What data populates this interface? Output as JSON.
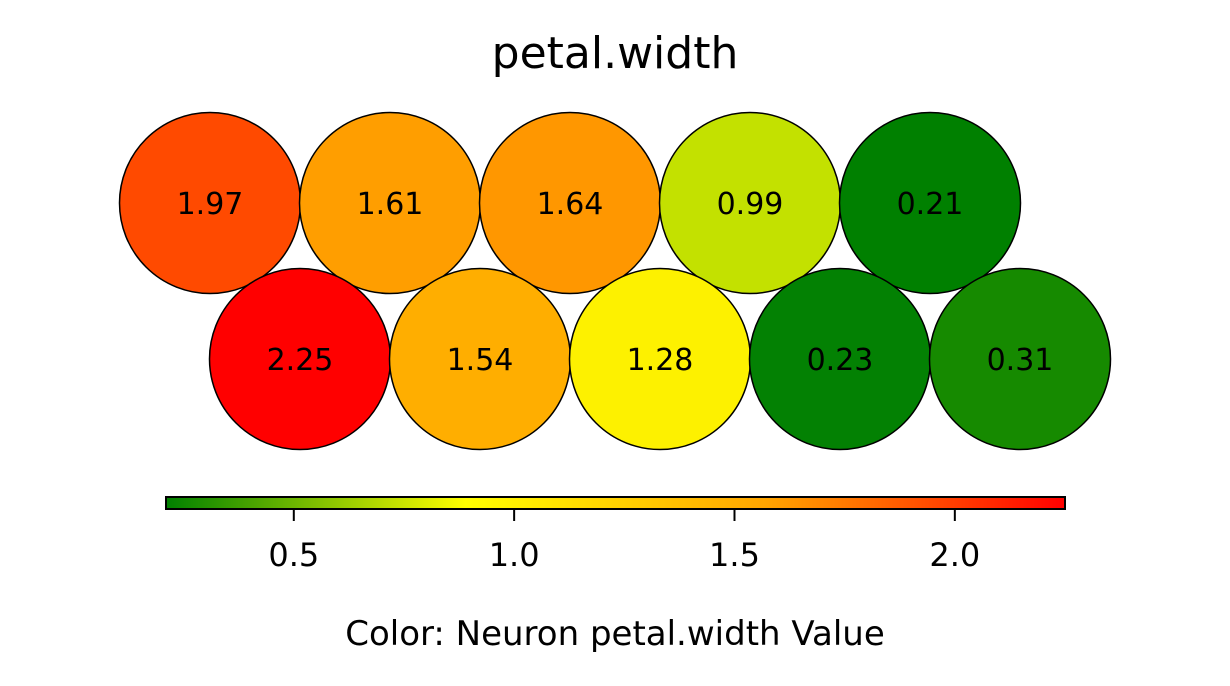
{
  "chart_data": {
    "type": "heatmap",
    "title": "petal.width",
    "grid_layout": "hexagonal",
    "rows": [
      {
        "cells": [
          {
            "value": 1.97,
            "label": "1.97"
          },
          {
            "value": 1.61,
            "label": "1.61"
          },
          {
            "value": 1.64,
            "label": "1.64"
          },
          {
            "value": 0.99,
            "label": "0.99"
          },
          {
            "value": 0.21,
            "label": "0.21"
          }
        ]
      },
      {
        "cells": [
          {
            "value": 2.25,
            "label": "2.25"
          },
          {
            "value": 1.54,
            "label": "1.54"
          },
          {
            "value": 1.28,
            "label": "1.28"
          },
          {
            "value": 0.23,
            "label": "0.23"
          },
          {
            "value": 0.31,
            "label": "0.31"
          }
        ]
      }
    ],
    "colorbar": {
      "range": [
        0.21,
        2.25
      ],
      "ticks": [
        0.5,
        1.0,
        1.5,
        2.0
      ],
      "tick_labels": [
        "0.5",
        "1.0",
        "1.5",
        "2.0"
      ],
      "colormap": [
        "#008000",
        "#ffff00",
        "#ffa500",
        "#ff0000"
      ],
      "label": "Color: Neuron petal.width Value",
      "orientation": "horizontal",
      "position": "bottom"
    },
    "cell_colors": {
      "1.97": "#ff4a00",
      "1.61": "#ff9e00",
      "1.64": "#ff9700",
      "0.99": "#c3e100",
      "0.21": "#008000",
      "2.25": "#ff0000",
      "1.54": "#ffae00",
      "1.28": "#fdf100",
      "0.23": "#038103",
      "0.31": "#168a00"
    },
    "edge_color": "#000000"
  }
}
